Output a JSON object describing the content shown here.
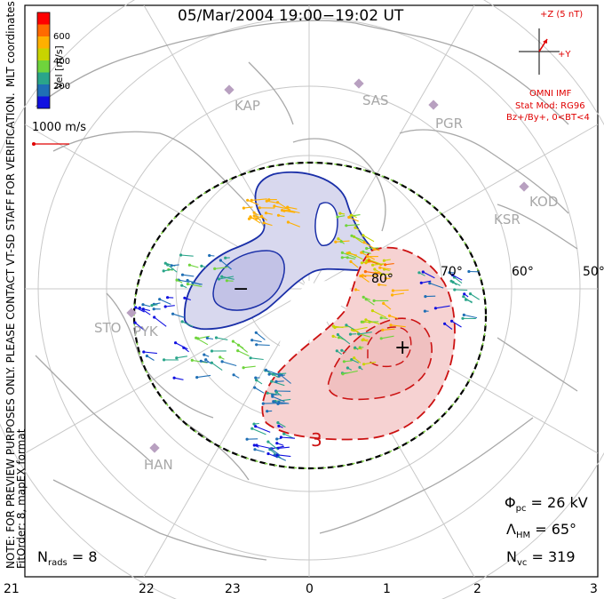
{
  "title": "05/Mar/2004  19:00−19:02  UT",
  "side_notes": {
    "line1": "NOTE: FOR PREVIEW PURPOSES ONLY. PLEASE CONTACT VT-SD STAFF FOR VERIFICATION.",
    "line2": "FitOrder: 8, mapEX format",
    "coords": "MLT coordinates"
  },
  "colorbar": {
    "label": "Vel [m/s]",
    "ticks": [
      "600",
      "400",
      "200"
    ],
    "colors": [
      "#ff0000",
      "#ff6a00",
      "#ffb000",
      "#c8d400",
      "#6fd43c",
      "#2aa58a",
      "#1f6fb5",
      "#1010e0"
    ]
  },
  "velocity_scale": "1000 m/s",
  "imf": {
    "z_label": "+Z (5 nT)",
    "y_label": "+Y",
    "source": "OMNI IMF",
    "model": "Stat Mod: RG96",
    "condition": "Bz+/By+, 0<BT<4"
  },
  "stations": [
    "KAP",
    "SAS",
    "PGR",
    "KOD",
    "KSR",
    "STO",
    "PYK",
    "HAN"
  ],
  "lat_labels": [
    "80°",
    "70°",
    "60°",
    "50°"
  ],
  "potential": {
    "minus": "−",
    "plus": "+",
    "contour_3": "3"
  },
  "stats": {
    "phi_sym": "Φ",
    "phi_sub": "pc",
    "phi_val": "= 26 kV",
    "lam_sym": "Λ",
    "lam_sub": "HM",
    "lam_val": "= 65°",
    "nvc_sym": "N",
    "nvc_sub": "vc",
    "nvc_val": "= 319",
    "nrads_sym": "N",
    "nrads_sub": "rads",
    "nrads_val": "= 8"
  },
  "x_ticks": [
    "21",
    "22",
    "23",
    "0",
    "1",
    "2",
    "3"
  ],
  "colors": {
    "negative_fill": "#d8d8ee",
    "negative_line": "#1a2fa8",
    "positive_fill": "#f6d2d2",
    "positive_line": "#cc1111",
    "land": "#a8a8a8",
    "grid": "#c8c8c8"
  }
}
